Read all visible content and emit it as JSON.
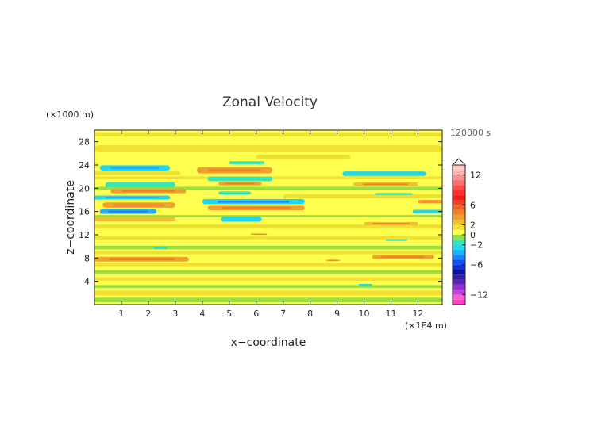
{
  "chart_data": {
    "type": "heatmap",
    "title": "Zonal Velocity",
    "xlabel": "x−coordinate",
    "ylabel": "z−coordinate",
    "x_unit": "(×1E4 m)",
    "y_unit": "(×1000 m)",
    "time_label": "120000 s",
    "xlim": [
      0,
      12.9
    ],
    "ylim": [
      0,
      30
    ],
    "x_ticks": [
      1,
      2,
      3,
      4,
      5,
      6,
      7,
      8,
      9,
      10,
      11,
      12
    ],
    "y_ticks": [
      4,
      8,
      12,
      16,
      20,
      24,
      28
    ],
    "colorbar": {
      "levels": [
        -14,
        -13,
        -12,
        -11,
        -10,
        -9,
        -8,
        -7,
        -6,
        -5,
        -4,
        -3,
        -2,
        -1,
        0,
        1,
        2,
        3,
        4,
        5,
        6,
        7,
        8,
        9,
        10,
        11,
        12,
        13,
        14
      ],
      "colors": [
        "#ff40c0",
        "#f060d0",
        "#c040d8",
        "#9030d0",
        "#6020b8",
        "#3020a0",
        "#1010a0",
        "#1030d0",
        "#1050f0",
        "#2080ff",
        "#20b0ff",
        "#20d8f0",
        "#30e8c0",
        "#98e040",
        "#ffff50",
        "#f0e030",
        "#f0c030",
        "#f0a030",
        "#f08020",
        "#f06020",
        "#f04020",
        "#f02020",
        "#ff3030",
        "#ff5050",
        "#ff7070",
        "#ff9090",
        "#ffb0b0",
        "#ffc8c8"
      ],
      "tick_labels": [
        12,
        6,
        2,
        0,
        -2,
        -6,
        -12
      ]
    },
    "background_value": 0.5,
    "features": [
      {
        "x0": 0.2,
        "x1": 2.8,
        "z": 23.5,
        "h": 0.9,
        "v": -2.5
      },
      {
        "x0": 0.0,
        "x1": 3.2,
        "z": 22.6,
        "h": 0.6,
        "v": 1.8
      },
      {
        "x0": 3.8,
        "x1": 6.6,
        "z": 23.1,
        "h": 1.1,
        "v": 3.5
      },
      {
        "x0": 5.0,
        "x1": 6.3,
        "z": 24.4,
        "h": 0.5,
        "v": -2.0
      },
      {
        "x0": 4.2,
        "x1": 6.6,
        "z": 21.6,
        "h": 0.8,
        "v": -1.8
      },
      {
        "x0": 0.4,
        "x1": 3.0,
        "z": 20.6,
        "h": 0.8,
        "v": -1.8
      },
      {
        "x0": 0.6,
        "x1": 3.4,
        "z": 19.5,
        "h": 0.7,
        "v": 3.0
      },
      {
        "x0": 4.6,
        "x1": 6.2,
        "z": 20.8,
        "h": 0.6,
        "v": 3.0
      },
      {
        "x0": 0.0,
        "x1": 2.8,
        "z": 18.4,
        "h": 0.7,
        "v": -2.6
      },
      {
        "x0": 4.6,
        "x1": 5.8,
        "z": 19.2,
        "h": 0.5,
        "v": -2.0
      },
      {
        "x0": 0.3,
        "x1": 3.0,
        "z": 17.1,
        "h": 0.9,
        "v": 3.5
      },
      {
        "x0": 4.0,
        "x1": 7.8,
        "z": 17.7,
        "h": 0.9,
        "v": -3.0
      },
      {
        "x0": 4.2,
        "x1": 7.8,
        "z": 16.6,
        "h": 0.8,
        "v": 3.5
      },
      {
        "x0": 0.2,
        "x1": 2.3,
        "z": 16.0,
        "h": 0.8,
        "v": -3.2
      },
      {
        "x0": 0.0,
        "x1": 3.0,
        "z": 14.7,
        "h": 0.8,
        "v": 2.2
      },
      {
        "x0": 4.7,
        "x1": 6.2,
        "z": 14.7,
        "h": 0.9,
        "v": -2.4
      },
      {
        "x0": 9.2,
        "x1": 12.3,
        "z": 22.5,
        "h": 0.8,
        "v": -2.2
      },
      {
        "x0": 9.6,
        "x1": 12.0,
        "z": 20.7,
        "h": 0.6,
        "v": 2.8
      },
      {
        "x0": 10.4,
        "x1": 11.8,
        "z": 19.0,
        "h": 0.4,
        "v": -1.8
      },
      {
        "x0": 12.0,
        "x1": 12.9,
        "z": 17.7,
        "h": 0.6,
        "v": 3.0
      },
      {
        "x0": 11.8,
        "x1": 12.9,
        "z": 16.0,
        "h": 0.6,
        "v": -2.4
      },
      {
        "x0": 10.0,
        "x1": 12.0,
        "z": 13.9,
        "h": 0.6,
        "v": 2.8
      },
      {
        "x0": 10.8,
        "x1": 11.6,
        "z": 11.1,
        "h": 0.3,
        "v": -2.0
      },
      {
        "x0": 2.2,
        "x1": 2.7,
        "z": 9.7,
        "h": 0.25,
        "v": -2.2
      },
      {
        "x0": 0.0,
        "x1": 3.5,
        "z": 7.8,
        "h": 0.8,
        "v": 3.5
      },
      {
        "x0": 10.3,
        "x1": 12.6,
        "z": 8.2,
        "h": 0.7,
        "v": 3.5
      },
      {
        "x0": 8.6,
        "x1": 9.1,
        "z": 7.6,
        "h": 0.25,
        "v": 3.0
      },
      {
        "x0": 9.8,
        "x1": 10.3,
        "z": 3.4,
        "h": 0.3,
        "v": -2.2
      },
      {
        "x0": 5.8,
        "x1": 6.4,
        "z": 12.1,
        "h": 0.25,
        "v": 3.0
      },
      {
        "x0": 6.0,
        "x1": 9.5,
        "z": 25.4,
        "h": 0.7,
        "v": 1.2
      },
      {
        "x0": 0.0,
        "x1": 12.9,
        "z": 26.8,
        "h": 1.2,
        "v": 1.3
      },
      {
        "x0": 0.0,
        "x1": 12.9,
        "z": 21.8,
        "h": 0.5,
        "v": 1.2
      },
      {
        "x0": 0.0,
        "x1": 12.9,
        "z": 20.0,
        "h": 0.5,
        "v": -0.8
      },
      {
        "x0": 7.0,
        "x1": 12.9,
        "z": 18.6,
        "h": 0.7,
        "v": 1.1
      },
      {
        "x0": 0.0,
        "x1": 12.9,
        "z": 15.2,
        "h": 0.4,
        "v": -0.8
      },
      {
        "x0": 0.0,
        "x1": 12.9,
        "z": 13.4,
        "h": 0.7,
        "v": 1.2
      },
      {
        "x0": 0.0,
        "x1": 12.9,
        "z": 11.5,
        "h": 0.6,
        "v": 1.1
      },
      {
        "x0": 0.0,
        "x1": 12.9,
        "z": 9.8,
        "h": 0.6,
        "v": -0.8
      },
      {
        "x0": 0.0,
        "x1": 12.9,
        "z": 8.9,
        "h": 0.5,
        "v": 1.2
      },
      {
        "x0": 0.0,
        "x1": 12.9,
        "z": 6.9,
        "h": 0.6,
        "v": 1.3
      },
      {
        "x0": 0.0,
        "x1": 12.9,
        "z": 5.6,
        "h": 0.6,
        "v": -0.8
      },
      {
        "x0": 0.0,
        "x1": 12.9,
        "z": 4.4,
        "h": 0.6,
        "v": 1.3
      },
      {
        "x0": 0.0,
        "x1": 12.9,
        "z": 3.1,
        "h": 0.5,
        "v": -0.7
      },
      {
        "x0": 0.0,
        "x1": 12.9,
        "z": 2.0,
        "h": 0.8,
        "v": 1.3
      },
      {
        "x0": 0.0,
        "x1": 12.9,
        "z": 0.8,
        "h": 0.8,
        "v": -0.8
      },
      {
        "x0": 0.0,
        "x1": 12.9,
        "z": 29.2,
        "h": 0.6,
        "v": 1.2
      }
    ]
  }
}
